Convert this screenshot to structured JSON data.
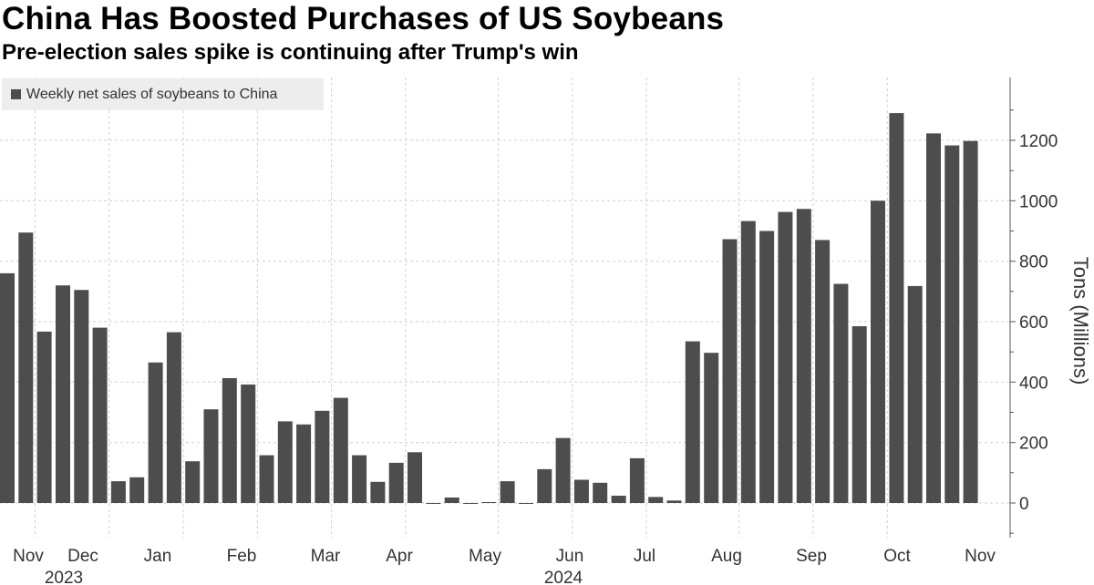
{
  "title": "China Has Boosted Purchases of US Soybeans",
  "subtitle": "Pre-election sales spike is continuing after Trump's win",
  "legend_label": "Weekly net sales of soybeans to China",
  "colors": {
    "bar": "#4d4d4d",
    "grid": "#cfcfcf",
    "axis": "#555555",
    "legend_bg": "#ededed"
  },
  "chart_data": {
    "type": "bar",
    "title": "China Has Boosted Purchases of US Soybeans",
    "subtitle": "Pre-election sales spike is continuing after Trump's win",
    "ylabel": "Tons (Millions)",
    "ylim": [
      -120,
      1400
    ],
    "yticks": [
      0,
      200,
      400,
      600,
      800,
      1000,
      1200
    ],
    "grid": true,
    "legend_position": "top-left",
    "series": [
      {
        "name": "Weekly net sales of soybeans to China",
        "values": [
          760,
          895,
          567,
          720,
          705,
          580,
          72,
          85,
          465,
          565,
          138,
          310,
          413,
          392,
          158,
          270,
          260,
          305,
          348,
          158,
          70,
          133,
          168,
          -2,
          18,
          -2,
          3,
          72,
          -2,
          112,
          215,
          77,
          67,
          24,
          148,
          20,
          8,
          535,
          497,
          873,
          933,
          900,
          963,
          973,
          870,
          725,
          585,
          1000,
          1290,
          718,
          1223,
          1183,
          1198
        ]
      }
    ],
    "x_month_labels": [
      "Nov",
      "Dec",
      "Jan",
      "Feb",
      "Mar",
      "Apr",
      "May",
      "Jun",
      "Jul",
      "Aug",
      "Sep",
      "Oct",
      "Nov"
    ],
    "x_year_labels": [
      "2023",
      "2024"
    ]
  }
}
